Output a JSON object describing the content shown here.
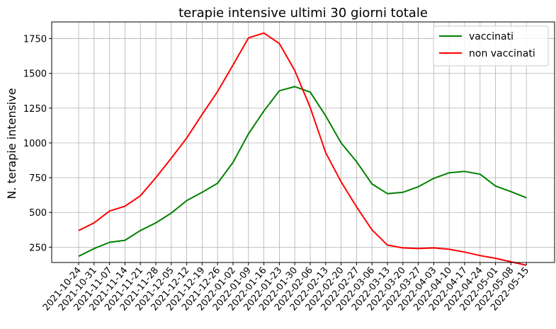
{
  "chart_data": {
    "type": "line",
    "title": "terapie intensive ultimi 30 giorni totale",
    "xlabel": "",
    "ylabel": "N. terapie intensive",
    "ylim": [
      140,
      1870
    ],
    "yticks": [
      250,
      500,
      750,
      1000,
      1250,
      1500,
      1750
    ],
    "grid": true,
    "legend_position": "top-right",
    "x": [
      "2021-10-24",
      "2021-10-31",
      "2021-11-07",
      "2021-11-14",
      "2021-11-21",
      "2021-11-28",
      "2021-12-05",
      "2021-12-12",
      "2021-12-19",
      "2021-12-26",
      "2022-01-02",
      "2022-01-09",
      "2022-01-16",
      "2022-01-23",
      "2022-01-30",
      "2022-02-06",
      "2022-02-13",
      "2022-02-20",
      "2022-02-27",
      "2022-03-06",
      "2022-03-13",
      "2022-03-20",
      "2022-03-27",
      "2022-04-03",
      "2022-04-10",
      "2022-04-17",
      "2022-04-24",
      "2022-05-01",
      "2022-05-08",
      "2022-05-15"
    ],
    "series": [
      {
        "name": "vaccinati",
        "color": "#008000",
        "values": [
          185,
          240,
          285,
          300,
          370,
          425,
          495,
          585,
          645,
          710,
          860,
          1065,
          1230,
          1375,
          1405,
          1365,
          1195,
          1000,
          865,
          705,
          635,
          645,
          685,
          745,
          785,
          795,
          775,
          690,
          650,
          605
        ]
      },
      {
        "name": "non vaccinati",
        "color": "#ff0000",
        "values": [
          370,
          425,
          510,
          545,
          620,
          750,
          890,
          1035,
          1205,
          1370,
          1560,
          1755,
          1790,
          1715,
          1520,
          1255,
          930,
          720,
          540,
          375,
          265,
          245,
          240,
          245,
          235,
          215,
          190,
          170,
          145,
          120
        ]
      }
    ]
  }
}
